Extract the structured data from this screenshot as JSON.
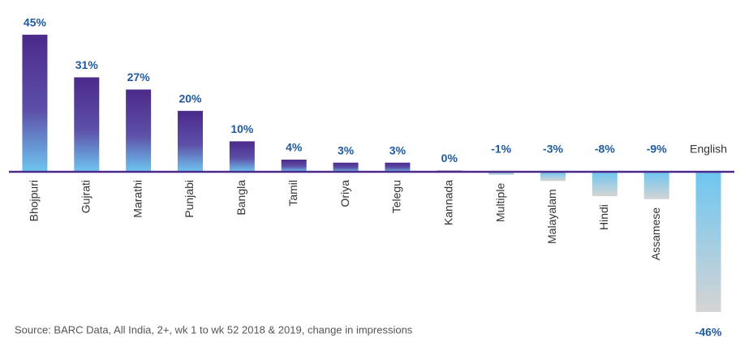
{
  "chart_data": {
    "type": "bar",
    "categories": [
      "Bhojpuri",
      "Gujrati",
      "Marathi",
      "Punjabi",
      "Bangla",
      "Tamil",
      "Oriya",
      "Telegu",
      "Kannada",
      "Multiple",
      "Malayalam",
      "Hindi",
      "Assamese",
      "English"
    ],
    "values": [
      45,
      31,
      27,
      20,
      10,
      4,
      3,
      3,
      0.4,
      -1,
      -3,
      -8,
      -9,
      -46
    ],
    "value_labels": [
      "45%",
      "31%",
      "27%",
      "20%",
      "10%",
      "4%",
      "3%",
      "3%",
      "0%",
      "-1%",
      "-3%",
      "-8%",
      "-9%",
      "-46%"
    ],
    "color": "#4b2a8a",
    "source": "Source: BARC Data, All India, 2+, wk 1 to wk 52 2018 & 2019, change in impressions"
  }
}
